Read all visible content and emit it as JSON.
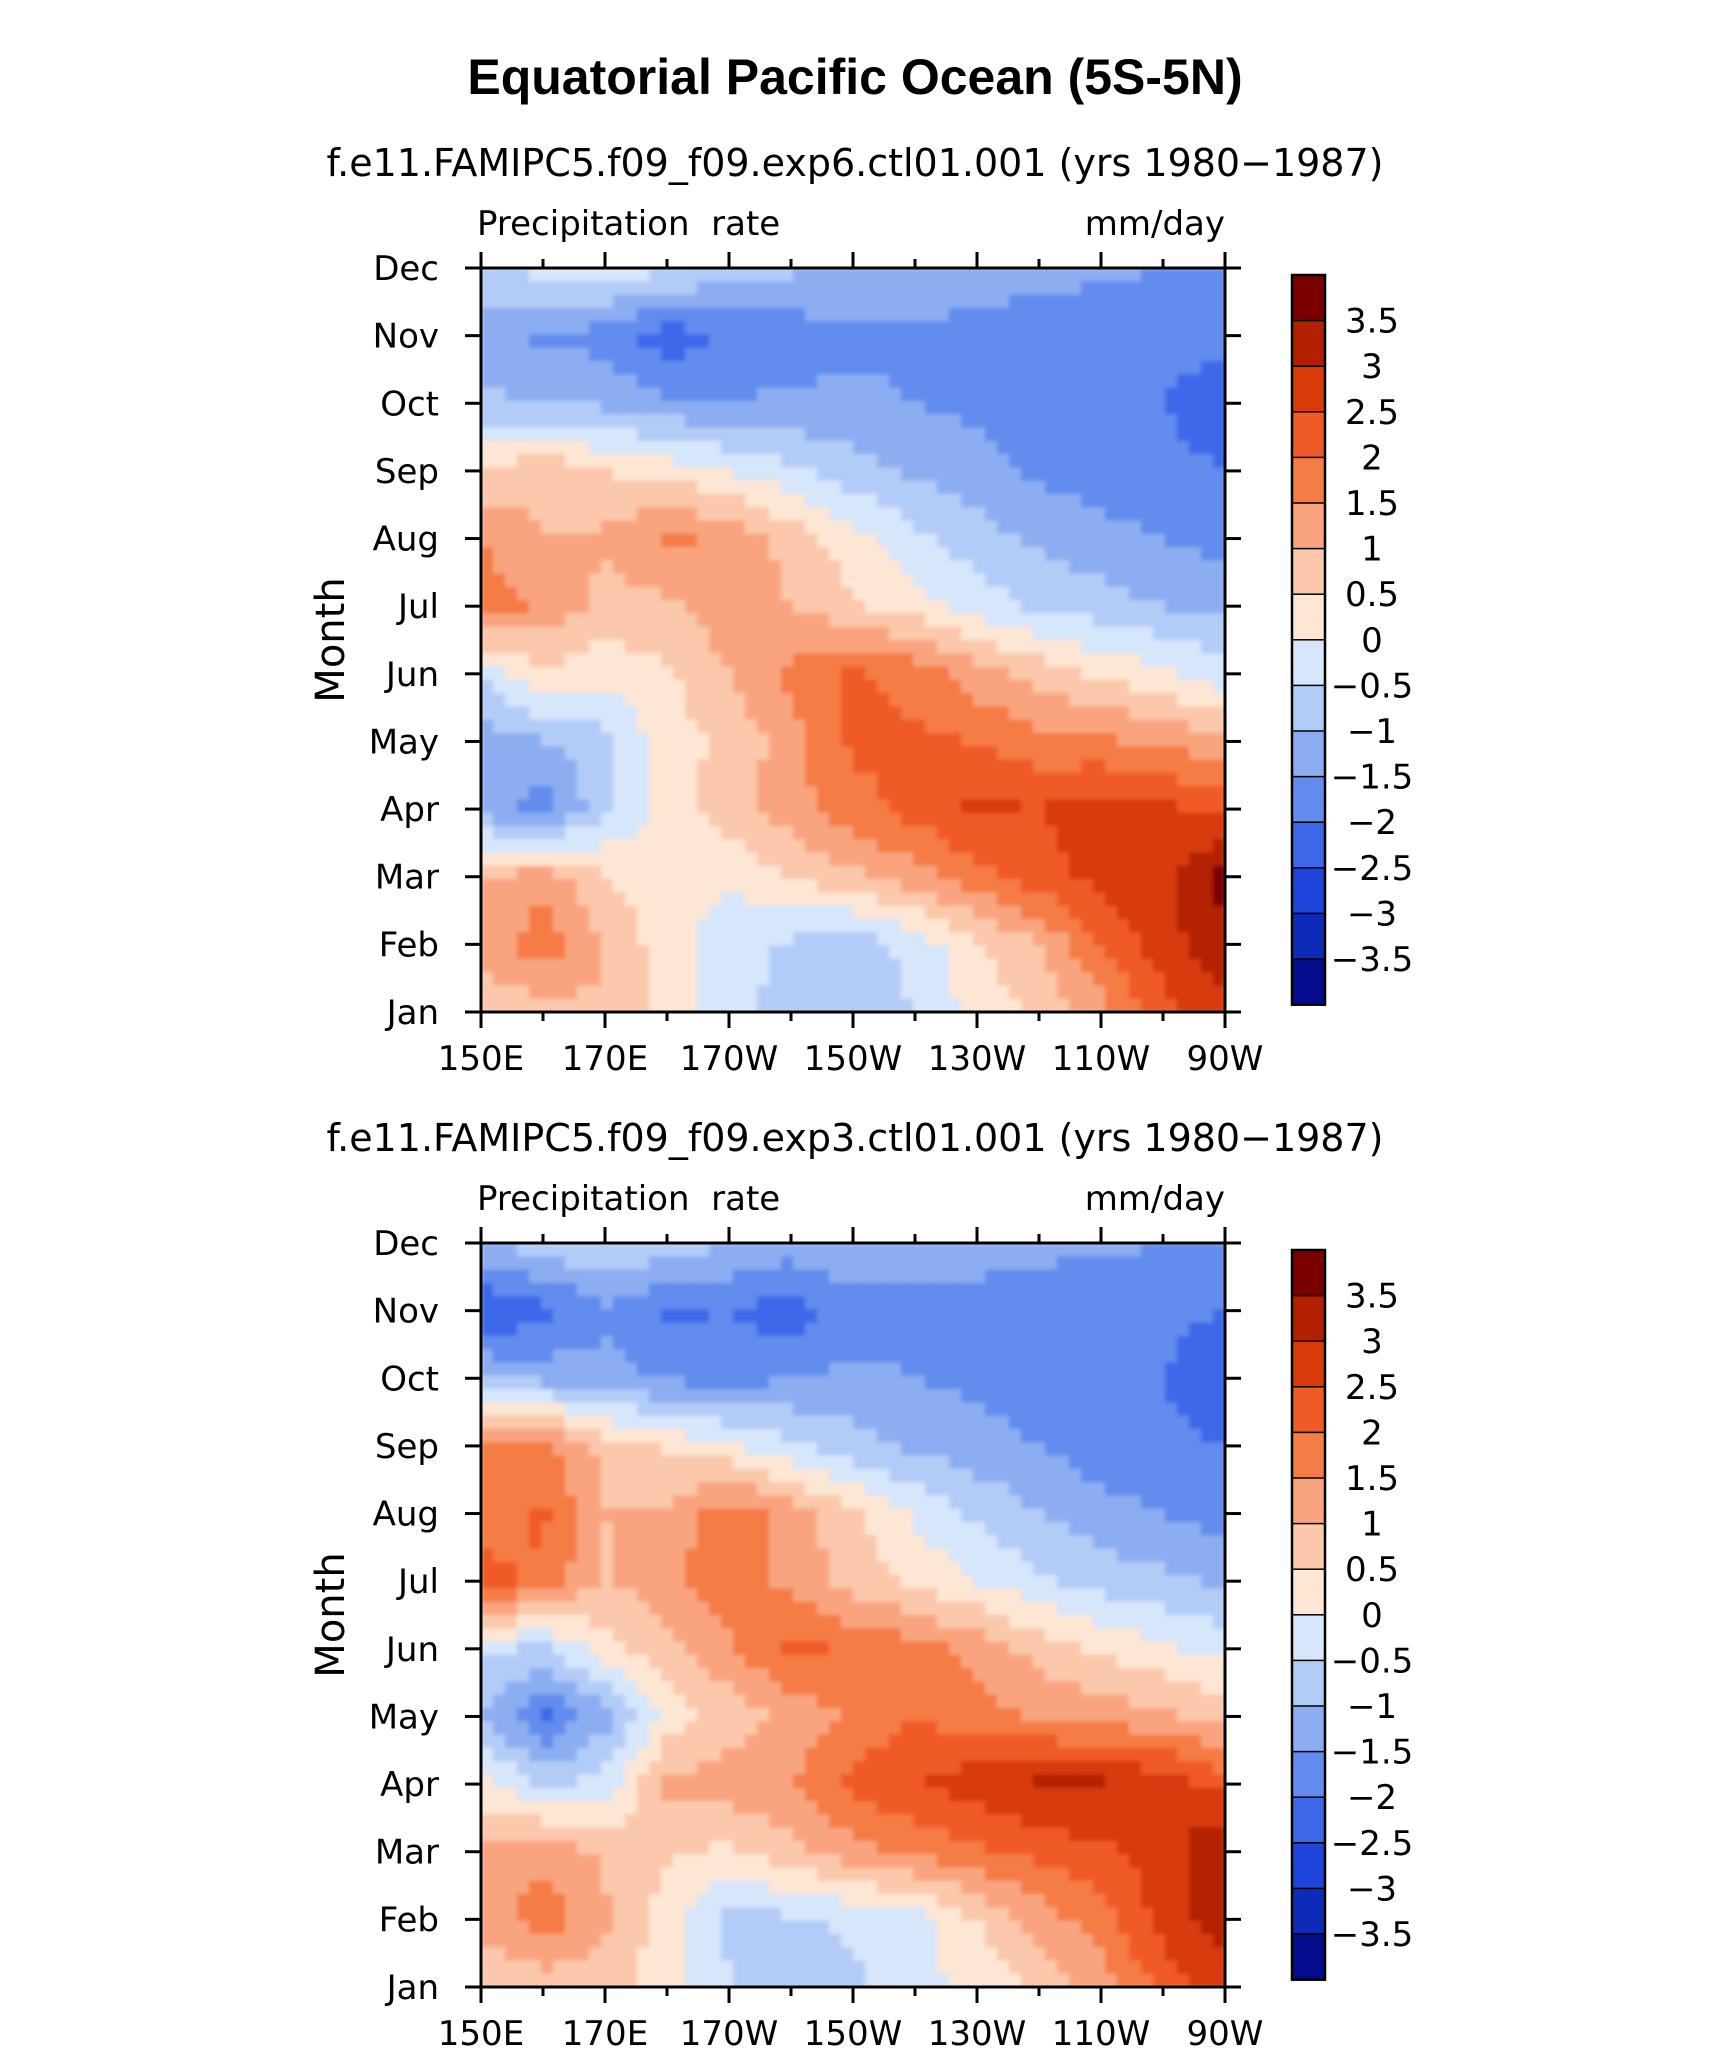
{
  "figure_title": "Equatorial Pacific Ocean (5S-5N)",
  "panels": [
    {
      "title": "f.e11.FAMIPC5.f09_f09.exp6.ctl01.001 (yrs 1980−1987)",
      "left_string": "Precipitation  rate",
      "right_string": "mm/day",
      "ylabel": "Month"
    },
    {
      "title": "f.e11.FAMIPC5.f09_f09.exp3.ctl01.001 (yrs 1980−1987)",
      "left_string": "Precipitation  rate",
      "right_string": "mm/day",
      "ylabel": "Month"
    }
  ],
  "x_tick_labels": [
    "150E",
    "170E",
    "170W",
    "150W",
    "130W",
    "110W",
    "90W"
  ],
  "y_tick_labels": [
    "Jan",
    "Feb",
    "Mar",
    "Apr",
    "May",
    "Jun",
    "Jul",
    "Aug",
    "Sep",
    "Oct",
    "Nov",
    "Dec"
  ],
  "colorbar": {
    "labels": [
      "3.5",
      "3",
      "2.5",
      "2",
      "1.5",
      "1",
      "0.5",
      "0",
      "−0.5",
      "−1",
      "−1.5",
      "−2",
      "−2.5",
      "−3",
      "−3.5"
    ],
    "colors": [
      "#7a0000",
      "#b22000",
      "#d83a0a",
      "#f05a26",
      "#f57c45",
      "#f9a47f",
      "#fbc8ab",
      "#fde6d4",
      "#d6e6fb",
      "#b3ccf7",
      "#8cadf2",
      "#628ced",
      "#3e68ea",
      "#1f45dc",
      "#0d2ab8",
      "#020c8c"
    ]
  },
  "chart_data": [
    {
      "type": "heatmap",
      "title": "f.e11.FAMIPC5.f09_f09.exp6.ctl01.001 (yrs 1980−1987)",
      "xlabel": "",
      "ylabel": "Month",
      "units": "mm/day",
      "x": [
        "150E",
        "160E",
        "170E",
        "180",
        "170W",
        "160W",
        "150W",
        "140W",
        "130W",
        "120W",
        "110W",
        "100W",
        "90W"
      ],
      "y": [
        "Jan",
        "Feb",
        "Mar",
        "Apr",
        "May",
        "Jun",
        "Jul",
        "Aug",
        "Sep",
        "Oct",
        "Nov",
        "Dec"
      ],
      "levels": [
        -3.5,
        -3,
        -2.5,
        -2,
        -1.5,
        -1,
        -0.5,
        0,
        0.5,
        1,
        1.5,
        2,
        2.5,
        3,
        3.5
      ],
      "z": [
        [
          0.6,
          0.8,
          0.9,
          0.3,
          -0.2,
          -0.8,
          -0.9,
          -0.5,
          0.2,
          0.6,
          1.3,
          2.3,
          2.9
        ],
        [
          1.2,
          1.8,
          1.0,
          0.2,
          -0.3,
          -0.6,
          -0.8,
          -0.3,
          0.4,
          1.0,
          2.0,
          2.8,
          3.3
        ],
        [
          1.0,
          1.3,
          0.5,
          0.2,
          0.1,
          0.5,
          0.9,
          1.3,
          1.8,
          2.3,
          2.7,
          2.9,
          3.7
        ],
        [
          -1.2,
          -1.8,
          -0.6,
          0.2,
          0.8,
          1.3,
          1.8,
          2.2,
          2.6,
          2.5,
          2.7,
          2.6,
          2.3
        ],
        [
          -1.3,
          -1.0,
          -0.7,
          0.3,
          0.6,
          1.3,
          2.1,
          2.1,
          2.0,
          1.7,
          1.6,
          1.4,
          1.1
        ],
        [
          -0.4,
          0.4,
          0.2,
          0.4,
          1.0,
          1.6,
          2.1,
          1.8,
          1.2,
          0.8,
          0.4,
          0.1,
          -0.3
        ],
        [
          1.8,
          1.4,
          0.8,
          0.9,
          1.3,
          1.0,
          0.6,
          0.2,
          -0.2,
          -0.6,
          -0.8,
          -1.0,
          -1.1
        ],
        [
          1.5,
          1.0,
          1.1,
          1.6,
          1.4,
          0.8,
          0.2,
          -0.4,
          -0.8,
          -1.1,
          -1.3,
          -1.5,
          -1.7
        ],
        [
          0.6,
          0.9,
          0.5,
          0.3,
          0.0,
          -0.4,
          -0.8,
          -1.1,
          -1.3,
          -1.6,
          -1.8,
          -1.9,
          -2.0
        ],
        [
          -0.9,
          -1.0,
          -1.1,
          -1.4,
          -1.5,
          -1.4,
          -1.4,
          -1.5,
          -1.6,
          -1.8,
          -1.9,
          -2.0,
          -2.2
        ],
        [
          -1.4,
          -1.6,
          -1.7,
          -2.3,
          -1.9,
          -1.8,
          -1.6,
          -1.6,
          -1.7,
          -1.8,
          -1.8,
          -1.9,
          -1.9
        ],
        [
          -0.6,
          -0.3,
          -0.2,
          -0.4,
          -0.7,
          -0.9,
          -1.1,
          -1.1,
          -1.2,
          -1.3,
          -1.4,
          -1.5,
          -1.6
        ]
      ]
    },
    {
      "type": "heatmap",
      "title": "f.e11.FAMIPC5.f09_f09.exp3.ctl01.001 (yrs 1980−1987)",
      "xlabel": "",
      "ylabel": "Month",
      "units": "mm/day",
      "x": [
        "150E",
        "160E",
        "170E",
        "180",
        "170W",
        "160W",
        "150W",
        "140W",
        "130W",
        "120W",
        "110W",
        "100W",
        "90W"
      ],
      "y": [
        "Jan",
        "Feb",
        "Mar",
        "Apr",
        "May",
        "Jun",
        "Jul",
        "Aug",
        "Sep",
        "Oct",
        "Nov",
        "Dec"
      ],
      "levels": [
        -3.5,
        -3,
        -2.5,
        -2,
        -1.5,
        -1,
        -0.5,
        0,
        0.5,
        1,
        1.5,
        2,
        2.5,
        3,
        3.5
      ],
      "z": [
        [
          0.6,
          0.7,
          0.8,
          0.2,
          -0.4,
          -0.9,
          -0.6,
          -0.2,
          0.2,
          0.6,
          1.2,
          2.2,
          2.8
        ],
        [
          1.2,
          1.8,
          1.1,
          0.2,
          -0.7,
          -0.6,
          -0.4,
          -0.2,
          0.5,
          1.2,
          1.8,
          2.7,
          3.3
        ],
        [
          1.1,
          1.4,
          0.9,
          0.6,
          0.4,
          0.8,
          1.3,
          1.6,
          1.9,
          2.2,
          2.4,
          2.7,
          3.6
        ],
        [
          0.2,
          -0.6,
          -0.3,
          1.1,
          1.3,
          1.5,
          2.2,
          2.5,
          2.8,
          3.1,
          3.1,
          2.8,
          2.3
        ],
        [
          -0.9,
          -2.1,
          -1.2,
          0.2,
          0.7,
          1.1,
          1.6,
          2.0,
          1.7,
          1.4,
          1.3,
          1.1,
          0.8
        ],
        [
          -0.4,
          -0.6,
          0.3,
          0.8,
          1.4,
          2.2,
          1.9,
          1.7,
          1.3,
          0.8,
          0.4,
          0.1,
          -0.2
        ],
        [
          2.2,
          1.9,
          0.9,
          1.4,
          1.9,
          1.3,
          0.8,
          0.4,
          0.0,
          -0.4,
          -0.7,
          -0.9,
          -1.1
        ],
        [
          1.7,
          2.1,
          1.0,
          1.1,
          1.8,
          1.3,
          0.6,
          -0.1,
          -0.6,
          -1.0,
          -1.3,
          -1.5,
          -1.7
        ],
        [
          1.8,
          1.7,
          0.8,
          0.4,
          0.1,
          -0.4,
          -0.8,
          -1.1,
          -1.3,
          -1.5,
          -1.8,
          -1.9,
          -2.0
        ],
        [
          -1.0,
          -1.2,
          -1.3,
          -1.6,
          -1.7,
          -1.5,
          -1.4,
          -1.5,
          -1.6,
          -1.8,
          -1.9,
          -2.0,
          -2.3
        ],
        [
          -2.5,
          -2.2,
          -1.6,
          -2.1,
          -2.0,
          -2.3,
          -1.7,
          -1.7,
          -1.8,
          -1.9,
          -1.9,
          -1.9,
          -2.0
        ],
        [
          -1.0,
          -0.7,
          -0.4,
          -0.7,
          -1.0,
          -1.2,
          -1.1,
          -1.1,
          -1.2,
          -1.3,
          -1.4,
          -1.5,
          -1.6
        ]
      ]
    }
  ]
}
